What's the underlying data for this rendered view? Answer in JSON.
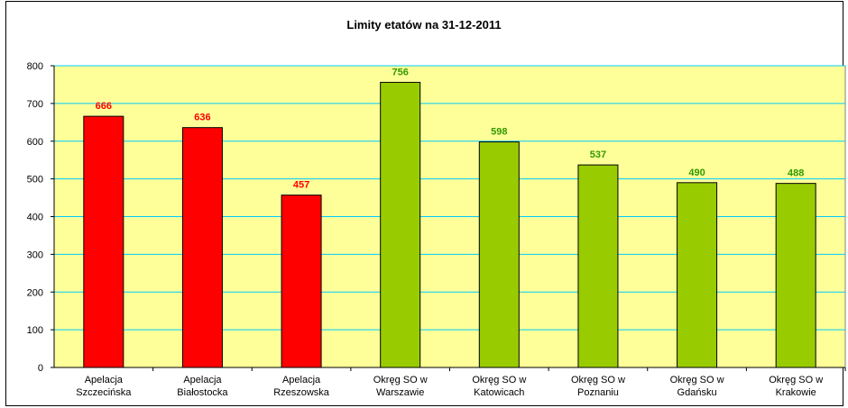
{
  "chart_data": {
    "type": "bar",
    "title": "Limity etatów na 31-12-2011",
    "xlabel": "",
    "ylabel": "",
    "ylim": [
      0,
      800
    ],
    "yticks": [
      0,
      100,
      200,
      300,
      400,
      500,
      600,
      700,
      800
    ],
    "grid": true,
    "legend": "none",
    "plot_background": "#ffff99",
    "gridline_color": "#00ccff",
    "categories": [
      [
        "Apelacja",
        "Szczecińska"
      ],
      [
        "Apelacja",
        "Białostocka"
      ],
      [
        "Apelacja",
        "Rzeszowska"
      ],
      [
        "Okręg SO w",
        "Warszawie"
      ],
      [
        "Okręg SO w",
        "Katowicach"
      ],
      [
        "Okręg SO w",
        "Poznaniu"
      ],
      [
        "Okręg SO w",
        "Gdańsku"
      ],
      [
        "Okręg SO w",
        "Krakowie"
      ]
    ],
    "values": [
      666,
      636,
      457,
      756,
      598,
      537,
      490,
      488
    ],
    "bar_colors": [
      "#ff0000",
      "#ff0000",
      "#ff0000",
      "#99cc00",
      "#99cc00",
      "#99cc00",
      "#99cc00",
      "#99cc00"
    ],
    "label_colors": [
      "#ff0000",
      "#ff0000",
      "#ff0000",
      "#339900",
      "#339900",
      "#339900",
      "#339900",
      "#339900"
    ]
  }
}
